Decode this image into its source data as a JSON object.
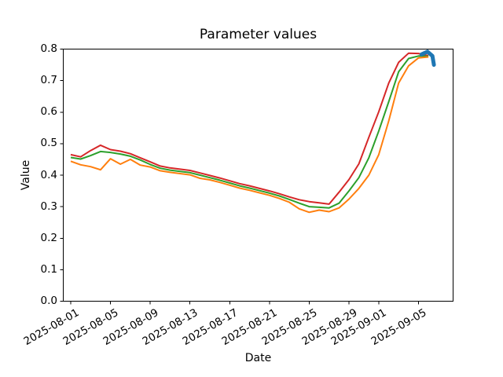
{
  "figure": {
    "title": "Parameter values",
    "x_axis_label": "Date",
    "y_axis_label": "Value"
  },
  "chart_data": {
    "type": "line",
    "title": "Parameter values",
    "xlabel": "Date",
    "ylabel": "Value",
    "ylim": [
      0.0,
      0.8
    ],
    "yticks": [
      0.0,
      0.1,
      0.2,
      0.3,
      0.4,
      0.5,
      0.6,
      0.7,
      0.8
    ],
    "grid": false,
    "legend": "none",
    "x": [
      "2025-08-01",
      "2025-08-02",
      "2025-08-03",
      "2025-08-04",
      "2025-08-05",
      "2025-08-06",
      "2025-08-07",
      "2025-08-08",
      "2025-08-09",
      "2025-08-10",
      "2025-08-11",
      "2025-08-12",
      "2025-08-13",
      "2025-08-14",
      "2025-08-15",
      "2025-08-16",
      "2025-08-17",
      "2025-08-18",
      "2025-08-19",
      "2025-08-20",
      "2025-08-21",
      "2025-08-22",
      "2025-08-23",
      "2025-08-24",
      "2025-08-25",
      "2025-08-26",
      "2025-08-27",
      "2025-08-28",
      "2025-08-29",
      "2025-08-30",
      "2025-08-31",
      "2025-09-01",
      "2025-09-02",
      "2025-09-03",
      "2025-09-04",
      "2025-09-05",
      "2025-09-06"
    ],
    "xtick_labels": [
      "2025-08-01",
      "2025-08-05",
      "2025-08-09",
      "2025-08-13",
      "2025-08-17",
      "2025-08-21",
      "2025-08-25",
      "2025-08-29",
      "2025-09-01",
      "2025-09-05"
    ],
    "series": [
      {
        "name": "parameter-red",
        "color": "#d62728",
        "values": [
          0.465,
          0.458,
          0.478,
          0.495,
          0.481,
          0.476,
          0.468,
          0.455,
          0.442,
          0.429,
          0.423,
          0.419,
          0.415,
          0.407,
          0.399,
          0.391,
          0.382,
          0.373,
          0.366,
          0.358,
          0.35,
          0.341,
          0.331,
          0.322,
          0.316,
          0.312,
          0.308,
          0.346,
          0.386,
          0.436,
          0.52,
          0.601,
          0.692,
          0.758,
          0.787,
          0.786,
          0.779
        ]
      },
      {
        "name": "parameter-green",
        "color": "#2ca02c",
        "values": [
          0.456,
          0.451,
          0.462,
          0.475,
          0.472,
          0.467,
          0.46,
          0.448,
          0.434,
          0.422,
          0.416,
          0.412,
          0.408,
          0.4,
          0.392,
          0.384,
          0.375,
          0.366,
          0.359,
          0.351,
          0.343,
          0.334,
          0.323,
          0.311,
          0.3,
          0.298,
          0.296,
          0.311,
          0.35,
          0.392,
          0.455,
          0.54,
          0.633,
          0.728,
          0.77,
          0.778,
          0.777
        ]
      },
      {
        "name": "parameter-orange",
        "color": "#ff7f0e",
        "values": [
          0.444,
          0.433,
          0.427,
          0.417,
          0.452,
          0.435,
          0.45,
          0.432,
          0.426,
          0.414,
          0.409,
          0.405,
          0.401,
          0.39,
          0.385,
          0.377,
          0.368,
          0.359,
          0.352,
          0.344,
          0.336,
          0.326,
          0.314,
          0.293,
          0.282,
          0.289,
          0.284,
          0.296,
          0.324,
          0.358,
          0.4,
          0.465,
          0.572,
          0.692,
          0.747,
          0.772,
          0.775
        ]
      }
    ],
    "annotation": {
      "name": "latest-value-marker",
      "shape": "thick-curved-hook",
      "color": "#1f77b4",
      "points_day_value": [
        [
          35.3,
          0.783
        ],
        [
          35.9,
          0.792
        ],
        [
          36.4,
          0.778
        ],
        [
          36.55,
          0.75
        ]
      ]
    }
  }
}
